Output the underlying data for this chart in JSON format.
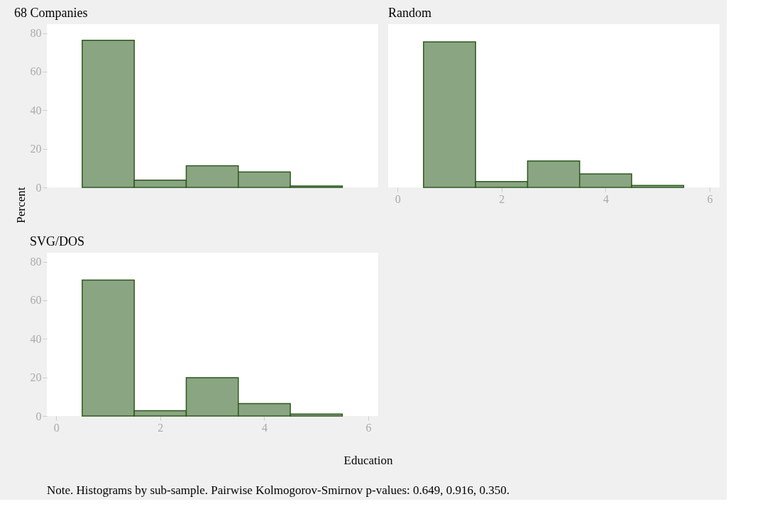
{
  "chart_data": [
    {
      "type": "histogram",
      "title": "68 Companies",
      "ylabel": "Percent",
      "bins": [
        0.5,
        1.5,
        2.5,
        3.5,
        4.5,
        5.5
      ],
      "values": [
        76.2,
        3.8,
        11.2,
        8.0,
        0.7
      ],
      "color": "#8aa582",
      "xlim": [
        -0.18,
        6.19
      ],
      "ylim": [
        0,
        84.6
      ],
      "yticks": [
        0,
        20,
        40,
        60,
        80
      ],
      "xticks": [
        0,
        2,
        4,
        6
      ],
      "tick_labels": "y",
      "grid": false
    },
    {
      "type": "histogram",
      "title": "Random",
      "bins": [
        0.5,
        1.5,
        2.5,
        3.5,
        4.5,
        5.5
      ],
      "values": [
        75.4,
        3.0,
        13.7,
        7.0,
        1.0
      ],
      "color": "#8aa582",
      "xlim": [
        -0.18,
        6.19
      ],
      "ylim": [
        0,
        84.6
      ],
      "yticks": [
        0,
        20,
        40,
        60,
        80
      ],
      "xticks": [
        0,
        2,
        4,
        6
      ],
      "tick_labels": "x",
      "grid": false
    },
    {
      "type": "histogram",
      "title": "SVG/DOS",
      "xlabel": "Education",
      "bins": [
        0.5,
        1.5,
        2.5,
        3.5,
        4.5,
        5.5
      ],
      "values": [
        70.4,
        2.8,
        19.9,
        6.4,
        1.0
      ],
      "color": "#8aa582",
      "xlim": [
        -0.18,
        6.19
      ],
      "ylim": [
        0,
        84.6
      ],
      "yticks": [
        0,
        20,
        40,
        60,
        80
      ],
      "xticks": [
        0,
        2,
        4,
        6
      ],
      "grid": false,
      "annotations": [
        "Note. Histograms by sub-sample. Pairwise Kolmogorov-Smirnov p-values: 0.649, 0.916, 0.350."
      ]
    }
  ]
}
